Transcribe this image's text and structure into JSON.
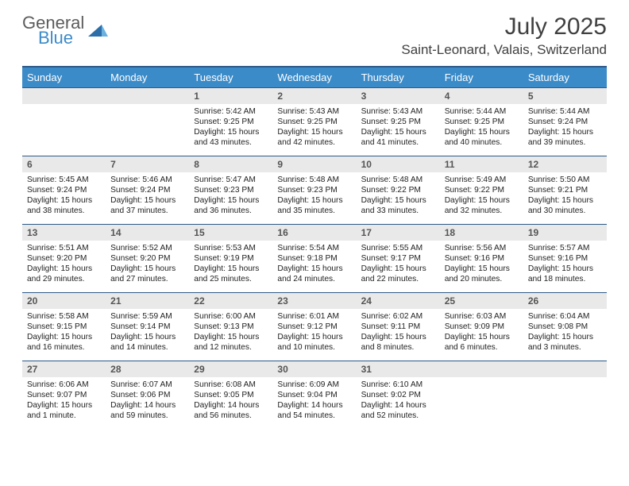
{
  "logo": {
    "general": "General",
    "blue": "Blue"
  },
  "title": "July 2025",
  "location": "Saint-Leonard, Valais, Switzerland",
  "colors": {
    "header_bg": "#3b8bc9",
    "header_border": "#2c5a8a",
    "daynum_bg": "#e9e9e9",
    "text": "#333333",
    "logo_gray": "#5c5c5c",
    "logo_blue": "#3b8bc9",
    "page_bg": "#ffffff"
  },
  "day_headers": [
    "Sunday",
    "Monday",
    "Tuesday",
    "Wednesday",
    "Thursday",
    "Friday",
    "Saturday"
  ],
  "weeks": [
    [
      {
        "blank": true
      },
      {
        "blank": true
      },
      {
        "n": "1",
        "sr": "5:42 AM",
        "ss": "9:25 PM",
        "dl": "15 hours and 43 minutes."
      },
      {
        "n": "2",
        "sr": "5:43 AM",
        "ss": "9:25 PM",
        "dl": "15 hours and 42 minutes."
      },
      {
        "n": "3",
        "sr": "5:43 AM",
        "ss": "9:25 PM",
        "dl": "15 hours and 41 minutes."
      },
      {
        "n": "4",
        "sr": "5:44 AM",
        "ss": "9:25 PM",
        "dl": "15 hours and 40 minutes."
      },
      {
        "n": "5",
        "sr": "5:44 AM",
        "ss": "9:24 PM",
        "dl": "15 hours and 39 minutes."
      }
    ],
    [
      {
        "n": "6",
        "sr": "5:45 AM",
        "ss": "9:24 PM",
        "dl": "15 hours and 38 minutes."
      },
      {
        "n": "7",
        "sr": "5:46 AM",
        "ss": "9:24 PM",
        "dl": "15 hours and 37 minutes."
      },
      {
        "n": "8",
        "sr": "5:47 AM",
        "ss": "9:23 PM",
        "dl": "15 hours and 36 minutes."
      },
      {
        "n": "9",
        "sr": "5:48 AM",
        "ss": "9:23 PM",
        "dl": "15 hours and 35 minutes."
      },
      {
        "n": "10",
        "sr": "5:48 AM",
        "ss": "9:22 PM",
        "dl": "15 hours and 33 minutes."
      },
      {
        "n": "11",
        "sr": "5:49 AM",
        "ss": "9:22 PM",
        "dl": "15 hours and 32 minutes."
      },
      {
        "n": "12",
        "sr": "5:50 AM",
        "ss": "9:21 PM",
        "dl": "15 hours and 30 minutes."
      }
    ],
    [
      {
        "n": "13",
        "sr": "5:51 AM",
        "ss": "9:20 PM",
        "dl": "15 hours and 29 minutes."
      },
      {
        "n": "14",
        "sr": "5:52 AM",
        "ss": "9:20 PM",
        "dl": "15 hours and 27 minutes."
      },
      {
        "n": "15",
        "sr": "5:53 AM",
        "ss": "9:19 PM",
        "dl": "15 hours and 25 minutes."
      },
      {
        "n": "16",
        "sr": "5:54 AM",
        "ss": "9:18 PM",
        "dl": "15 hours and 24 minutes."
      },
      {
        "n": "17",
        "sr": "5:55 AM",
        "ss": "9:17 PM",
        "dl": "15 hours and 22 minutes."
      },
      {
        "n": "18",
        "sr": "5:56 AM",
        "ss": "9:16 PM",
        "dl": "15 hours and 20 minutes."
      },
      {
        "n": "19",
        "sr": "5:57 AM",
        "ss": "9:16 PM",
        "dl": "15 hours and 18 minutes."
      }
    ],
    [
      {
        "n": "20",
        "sr": "5:58 AM",
        "ss": "9:15 PM",
        "dl": "15 hours and 16 minutes."
      },
      {
        "n": "21",
        "sr": "5:59 AM",
        "ss": "9:14 PM",
        "dl": "15 hours and 14 minutes."
      },
      {
        "n": "22",
        "sr": "6:00 AM",
        "ss": "9:13 PM",
        "dl": "15 hours and 12 minutes."
      },
      {
        "n": "23",
        "sr": "6:01 AM",
        "ss": "9:12 PM",
        "dl": "15 hours and 10 minutes."
      },
      {
        "n": "24",
        "sr": "6:02 AM",
        "ss": "9:11 PM",
        "dl": "15 hours and 8 minutes."
      },
      {
        "n": "25",
        "sr": "6:03 AM",
        "ss": "9:09 PM",
        "dl": "15 hours and 6 minutes."
      },
      {
        "n": "26",
        "sr": "6:04 AM",
        "ss": "9:08 PM",
        "dl": "15 hours and 3 minutes."
      }
    ],
    [
      {
        "n": "27",
        "sr": "6:06 AM",
        "ss": "9:07 PM",
        "dl": "15 hours and 1 minute."
      },
      {
        "n": "28",
        "sr": "6:07 AM",
        "ss": "9:06 PM",
        "dl": "14 hours and 59 minutes."
      },
      {
        "n": "29",
        "sr": "6:08 AM",
        "ss": "9:05 PM",
        "dl": "14 hours and 56 minutes."
      },
      {
        "n": "30",
        "sr": "6:09 AM",
        "ss": "9:04 PM",
        "dl": "14 hours and 54 minutes."
      },
      {
        "n": "31",
        "sr": "6:10 AM",
        "ss": "9:02 PM",
        "dl": "14 hours and 52 minutes."
      },
      {
        "blank": true
      },
      {
        "blank": true
      }
    ]
  ],
  "labels": {
    "sunrise": "Sunrise:",
    "sunset": "Sunset:",
    "daylight": "Daylight:"
  }
}
